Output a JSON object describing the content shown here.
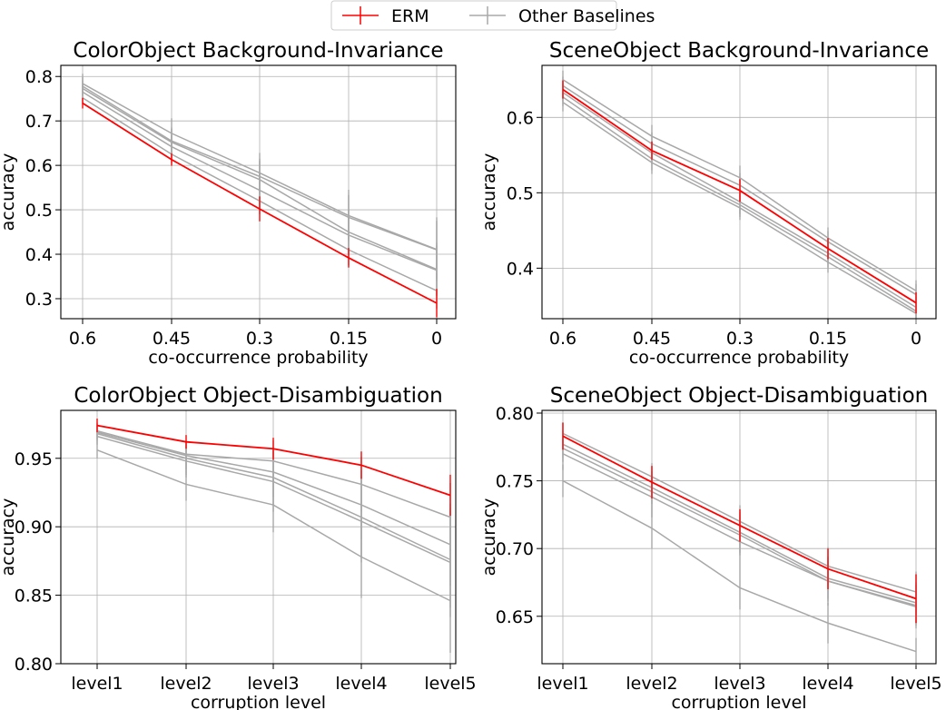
{
  "legend": {
    "placement": "top-center",
    "entries": [
      {
        "label": "ERM",
        "color": "#ff0000"
      },
      {
        "label": "Other Baselines",
        "color": "#a8a8a8"
      }
    ]
  },
  "chart_data": [
    {
      "type": "line",
      "title": "ColorObject Background-Invariance",
      "xlabel": "co-occurrence probability",
      "ylabel": "accuracy",
      "categories": [
        "0.6",
        "0.45",
        "0.3",
        "0.15",
        "0"
      ],
      "ylim": [
        0.255,
        0.825
      ],
      "yticks": [
        "0.3",
        "0.4",
        "0.5",
        "0.6",
        "0.7",
        "0.8"
      ],
      "grid": true,
      "erm": {
        "values": [
          0.74,
          0.613,
          0.502,
          0.392,
          0.29
        ],
        "errors": [
          0.012,
          0.014,
          0.028,
          0.022,
          0.032
        ]
      },
      "baselines": [
        {
          "values": [
            0.784,
            0.672,
            0.583,
            0.487,
            0.411
          ],
          "errors": [
            0.022,
            0.034,
            0.045,
            0.058,
            0.072
          ]
        },
        {
          "values": [
            0.778,
            0.655,
            0.575,
            0.483,
            0.41
          ],
          "errors": [
            0.02,
            0.03,
            0.04,
            0.05,
            0.065
          ]
        },
        {
          "values": [
            0.773,
            0.652,
            0.568,
            0.45,
            0.366
          ],
          "errors": [
            0.018,
            0.03,
            0.042,
            0.05,
            0.06
          ]
        },
        {
          "values": [
            0.765,
            0.642,
            0.544,
            0.443,
            0.364
          ],
          "errors": [
            0.016,
            0.025,
            0.04,
            0.045,
            0.055
          ]
        },
        {
          "values": [
            0.752,
            0.625,
            0.52,
            0.41,
            0.318
          ],
          "errors": [
            0.015,
            0.02,
            0.03,
            0.035,
            0.04
          ]
        }
      ]
    },
    {
      "type": "line",
      "title": "SceneObject Background-Invariance",
      "xlabel": "co-occurrence probability",
      "ylabel": "accuracy",
      "categories": [
        "0.6",
        "0.45",
        "0.3",
        "0.15",
        "0"
      ],
      "ylim": [
        0.333,
        0.669
      ],
      "yticks": [
        "0.4",
        "0.5",
        "0.6"
      ],
      "grid": true,
      "erm": {
        "values": [
          0.637,
          0.556,
          0.503,
          0.426,
          0.354
        ],
        "errors": [
          0.012,
          0.012,
          0.015,
          0.014,
          0.014
        ]
      },
      "baselines": [
        {
          "values": [
            0.65,
            0.575,
            0.52,
            0.44,
            0.37
          ],
          "errors": [
            0.012,
            0.015,
            0.016,
            0.014,
            0.014
          ]
        },
        {
          "values": [
            0.642,
            0.565,
            0.51,
            0.435,
            0.365
          ],
          "errors": [
            0.012,
            0.015,
            0.016,
            0.014,
            0.014
          ]
        },
        {
          "values": [
            0.633,
            0.553,
            0.488,
            0.42,
            0.348
          ],
          "errors": [
            0.012,
            0.015,
            0.016,
            0.014,
            0.014
          ]
        },
        {
          "values": [
            0.627,
            0.545,
            0.484,
            0.415,
            0.343
          ],
          "errors": [
            0.012,
            0.015,
            0.016,
            0.014,
            0.014
          ]
        },
        {
          "values": [
            0.62,
            0.54,
            0.48,
            0.408,
            0.34
          ],
          "errors": [
            0.012,
            0.015,
            0.016,
            0.014,
            0.014
          ]
        }
      ]
    },
    {
      "type": "line",
      "title": "ColorObject Object-Disambiguation",
      "xlabel": "corruption level",
      "ylabel": "accuracy",
      "categories": [
        "level1",
        "level2",
        "level3",
        "level4",
        "level5"
      ],
      "ylim": [
        0.8,
        0.985
      ],
      "yticks": [
        "0.80",
        "0.85",
        "0.90",
        "0.95"
      ],
      "grid": true,
      "erm": {
        "values": [
          0.974,
          0.962,
          0.957,
          0.945,
          0.923
        ],
        "errors": [
          0.005,
          0.005,
          0.008,
          0.01,
          0.015
        ]
      },
      "baselines": [
        {
          "values": [
            0.97,
            0.953,
            0.948,
            0.931,
            0.907
          ],
          "errors": [
            0.006,
            0.01,
            0.015,
            0.02,
            0.025
          ]
        },
        {
          "values": [
            0.969,
            0.952,
            0.94,
            0.916,
            0.887
          ],
          "errors": [
            0.006,
            0.01,
            0.018,
            0.025,
            0.03
          ]
        },
        {
          "values": [
            0.968,
            0.95,
            0.936,
            0.907,
            0.876
          ],
          "errors": [
            0.006,
            0.012,
            0.02,
            0.03,
            0.035
          ]
        },
        {
          "values": [
            0.966,
            0.948,
            0.933,
            0.904,
            0.874
          ],
          "errors": [
            0.006,
            0.012,
            0.022,
            0.03,
            0.04
          ]
        },
        {
          "values": [
            0.956,
            0.931,
            0.916,
            0.878,
            0.846
          ],
          "errors": [
            0.006,
            0.012,
            0.02,
            0.03,
            0.038
          ]
        }
      ]
    },
    {
      "type": "line",
      "title": "SceneObject Object-Disambiguation",
      "xlabel": "corruption level",
      "ylabel": "accuracy",
      "categories": [
        "level1",
        "level2",
        "level3",
        "level4",
        "level5"
      ],
      "ylim": [
        0.615,
        0.802
      ],
      "yticks": [
        "0.65",
        "0.70",
        "0.75",
        "0.80"
      ],
      "grid": true,
      "erm": {
        "values": [
          0.783,
          0.749,
          0.717,
          0.685,
          0.663
        ],
        "errors": [
          0.01,
          0.012,
          0.012,
          0.015,
          0.018
        ]
      },
      "baselines": [
        {
          "values": [
            0.785,
            0.753,
            0.72,
            0.687,
            0.668
          ],
          "errors": [
            0.008,
            0.01,
            0.012,
            0.014,
            0.015
          ]
        },
        {
          "values": [
            0.777,
            0.745,
            0.712,
            0.678,
            0.66
          ],
          "errors": [
            0.01,
            0.012,
            0.015,
            0.015,
            0.015
          ]
        },
        {
          "values": [
            0.774,
            0.742,
            0.71,
            0.676,
            0.658
          ],
          "errors": [
            0.01,
            0.012,
            0.015,
            0.015,
            0.015
          ]
        },
        {
          "values": [
            0.77,
            0.738,
            0.705,
            0.676,
            0.657
          ],
          "errors": [
            0.012,
            0.015,
            0.018,
            0.018,
            0.016
          ]
        },
        {
          "values": [
            0.75,
            0.715,
            0.671,
            0.645,
            0.624
          ],
          "errors": [
            0.012,
            0.015,
            0.016,
            0.015,
            0.01
          ]
        }
      ]
    }
  ]
}
